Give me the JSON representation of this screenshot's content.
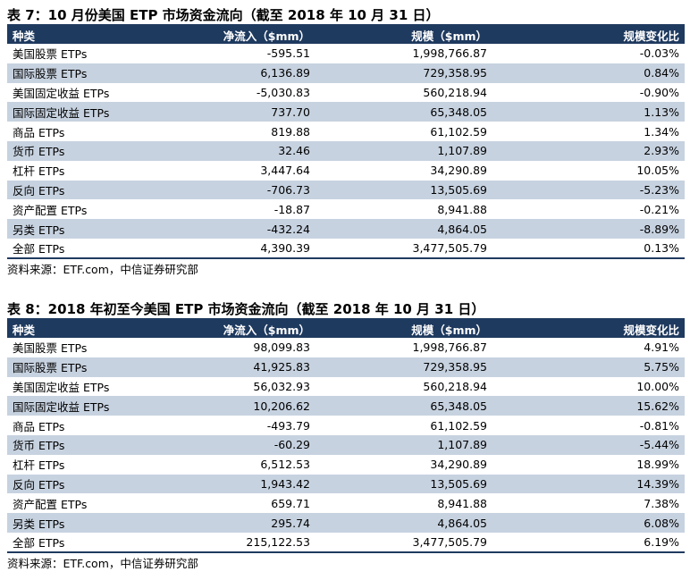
{
  "tables": [
    {
      "title": "表 7：10 月份美国 ETP 市场资金流向（截至 2018 年 10 月 31 日）",
      "headers": [
        "种类",
        "净流入（$mm）",
        "规模（$mm）",
        "规模变化比"
      ],
      "rows": [
        [
          "美国股票 ETPs",
          "-595.51",
          "1,998,766.87",
          "-0.03%"
        ],
        [
          "国际股票 ETPs",
          "6,136.89",
          "729,358.95",
          "0.84%"
        ],
        [
          "美国固定收益 ETPs",
          "-5,030.83",
          "560,218.94",
          "-0.90%"
        ],
        [
          "国际固定收益 ETPs",
          "737.70",
          "65,348.05",
          "1.13%"
        ],
        [
          "商品 ETPs",
          "819.88",
          "61,102.59",
          "1.34%"
        ],
        [
          "货币 ETPs",
          "32.46",
          "1,107.89",
          "2.93%"
        ],
        [
          "杠杆 ETPs",
          "3,447.64",
          "34,290.89",
          "10.05%"
        ],
        [
          "反向 ETPs",
          "-706.73",
          "13,505.69",
          "-5.23%"
        ],
        [
          "资产配置 ETPs",
          "-18.87",
          "8,941.88",
          "-0.21%"
        ],
        [
          "另类 ETPs",
          "-432.24",
          "4,864.05",
          "-8.89%"
        ],
        [
          "全部 ETPs",
          "4,390.39",
          "3,477,505.79",
          "0.13%"
        ]
      ],
      "source": "资料来源：ETF.com，中信证券研究部"
    },
    {
      "title": "表 8：2018 年初至今美国 ETP 市场资金流向（截至 2018 年 10 月 31 日）",
      "headers": [
        "种类",
        "净流入（$mm）",
        "规模（$mm）",
        "规模变化比"
      ],
      "rows": [
        [
          "美国股票 ETPs",
          "98,099.83",
          "1,998,766.87",
          "4.91%"
        ],
        [
          "国际股票 ETPs",
          "41,925.83",
          "729,358.95",
          "5.75%"
        ],
        [
          "美国固定收益 ETPs",
          "56,032.93",
          "560,218.94",
          "10.00%"
        ],
        [
          "国际固定收益 ETPs",
          "10,206.62",
          "65,348.05",
          "15.62%"
        ],
        [
          "商品 ETPs",
          "-493.79",
          "61,102.59",
          "-0.81%"
        ],
        [
          "货币 ETPs",
          "-60.29",
          "1,107.89",
          "-5.44%"
        ],
        [
          "杠杆 ETPs",
          "6,512.53",
          "34,290.89",
          "18.99%"
        ],
        [
          "反向 ETPs",
          "1,943.42",
          "13,505.69",
          "14.39%"
        ],
        [
          "资产配置 ETPs",
          "659.71",
          "8,941.88",
          "7.38%"
        ],
        [
          "另类 ETPs",
          "295.74",
          "4,864.05",
          "6.08%"
        ],
        [
          "全部 ETPs",
          "215,122.53",
          "3,477,505.79",
          "6.19%"
        ]
      ],
      "source": "资料来源：ETF.com，中信证券研究部"
    }
  ]
}
